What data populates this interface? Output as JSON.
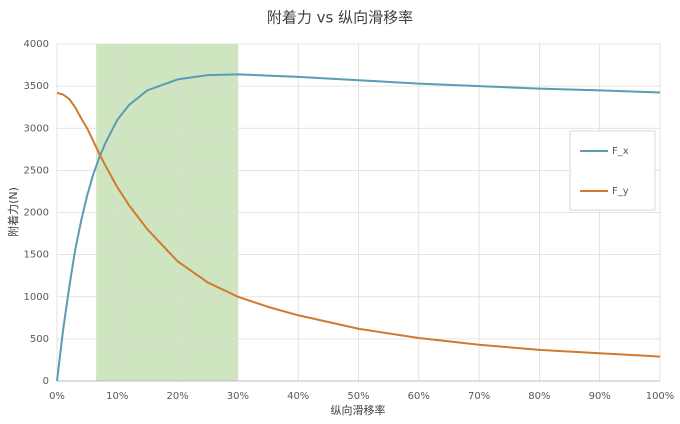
{
  "chart_data": {
    "type": "line",
    "title": "附着力 vs 纵向滑移率",
    "x_label": "纵向滑移率",
    "y_label": "附着力(N)",
    "x": [
      0,
      1,
      2,
      3,
      4,
      5,
      6,
      7,
      8,
      10,
      12,
      15,
      20,
      25,
      30,
      35,
      40,
      50,
      60,
      70,
      80,
      90,
      100
    ],
    "series": [
      {
        "name": "F_x",
        "color": "#5a9bb8",
        "values": [
          0,
          600,
          1100,
          1550,
          1900,
          2200,
          2450,
          2650,
          2820,
          3100,
          3280,
          3450,
          3580,
          3630,
          3640,
          3625,
          3610,
          3570,
          3530,
          3500,
          3470,
          3450,
          3425
        ]
      },
      {
        "name": "F_y",
        "color": "#d07a30",
        "values": [
          3420,
          3400,
          3350,
          3250,
          3120,
          3000,
          2850,
          2700,
          2560,
          2300,
          2080,
          1800,
          1420,
          1170,
          1000,
          880,
          780,
          620,
          510,
          430,
          370,
          330,
          290
        ]
      }
    ],
    "shaded_range": [
      6.5,
      30
    ],
    "shaded_color": "#c5e0b4",
    "xlim": [
      0,
      100
    ],
    "xticks": [
      {
        "value": 0,
        "label": "0%"
      },
      {
        "value": 10,
        "label": "10%"
      },
      {
        "value": 20,
        "label": "20%"
      },
      {
        "value": 30,
        "label": "30%"
      },
      {
        "value": 40,
        "label": "40%"
      },
      {
        "value": 50,
        "label": "50%"
      },
      {
        "value": 60,
        "label": "60%"
      },
      {
        "value": 70,
        "label": "70%"
      },
      {
        "value": 80,
        "label": "80%"
      },
      {
        "value": 90,
        "label": "90%"
      },
      {
        "value": 100,
        "label": "100%"
      }
    ],
    "ylim": [
      0,
      4000
    ],
    "yticks": [
      0,
      500,
      1000,
      1500,
      2000,
      2500,
      3000,
      3500,
      4000
    ],
    "grid": true,
    "legend": "right"
  }
}
